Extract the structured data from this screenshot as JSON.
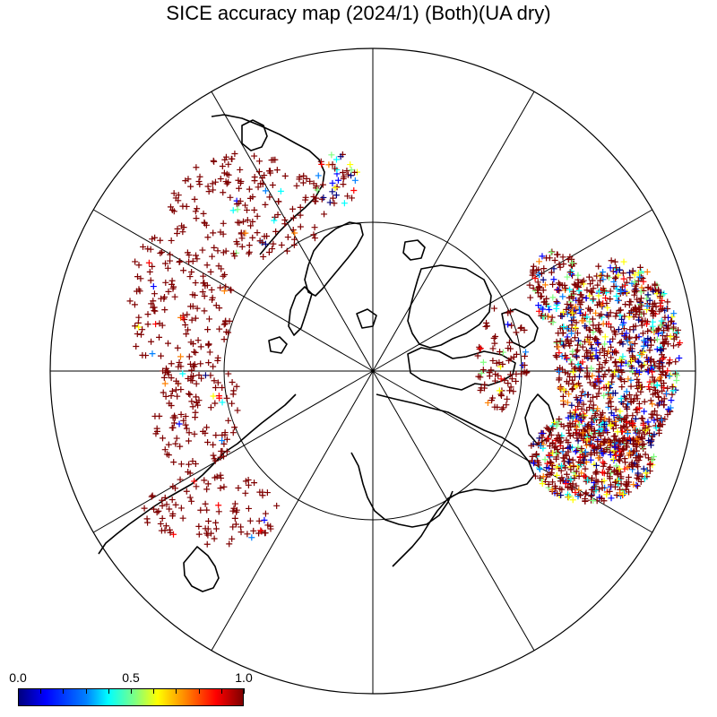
{
  "title": "SICE accuracy map (2024/1) (Both)(UA dry)",
  "colorbar": {
    "min_label": "0.0",
    "mid_label": "0.5",
    "max_label": "1.0",
    "colors": [
      "#00007f",
      "#0000ff",
      "#0080ff",
      "#00ffff",
      "#80ff80",
      "#ffff00",
      "#ff8000",
      "#ff0000",
      "#7f0000"
    ]
  },
  "map": {
    "projection": "north polar stereographic",
    "meridian_spacing_deg": 30,
    "latitude_circles": [
      60
    ],
    "marker": "+",
    "value_range": [
      0.0,
      1.0
    ]
  }
}
